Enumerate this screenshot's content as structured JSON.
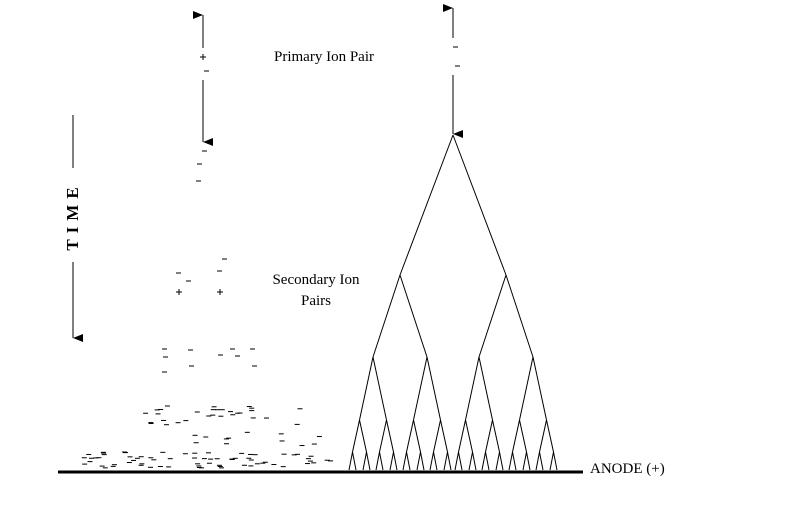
{
  "labels": {
    "primary": "Primary Ion Pair",
    "secondary": [
      "Secondary Ion",
      "Pairs"
    ],
    "time": "TIME",
    "anode": "ANODE (+)"
  }
}
